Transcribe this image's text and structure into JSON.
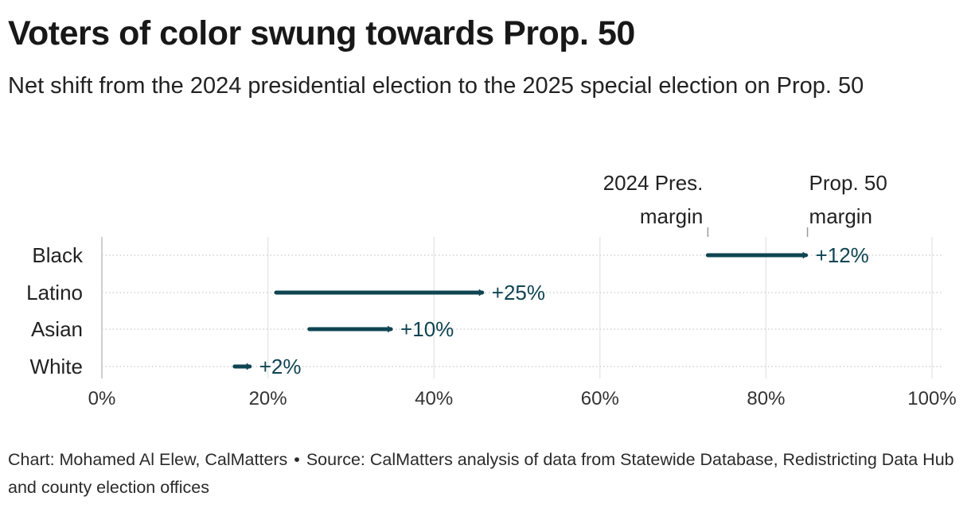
{
  "title": "Voters of color swung towards Prop. 50",
  "subtitle": "Net shift from the 2024 presidential election to the 2025 special election on Prop. 50",
  "footer": {
    "credit": "Chart: Mohamed Al Elew, CalMatters",
    "separator": "•",
    "source": "Source: CalMatters analysis of data from Statewide Database, Redistricting Data Hub and county election offices"
  },
  "chart_data": {
    "type": "arrow",
    "xlim": [
      0,
      100
    ],
    "x_ticks": [
      0,
      20,
      40,
      60,
      80,
      100
    ],
    "x_tick_labels": [
      "0%",
      "20%",
      "40%",
      "60%",
      "80%",
      "100%"
    ],
    "grid": true,
    "start_label": [
      "2024 Pres.",
      "margin"
    ],
    "end_label": [
      "Prop. 50",
      "margin"
    ],
    "annotation_row": "Black",
    "arrow_color": "#0f4452",
    "rows": [
      {
        "category": "Black",
        "start": 73,
        "end": 85,
        "label": "+12%"
      },
      {
        "category": "Latino",
        "start": 21,
        "end": 46,
        "label": "+25%"
      },
      {
        "category": "Asian",
        "start": 25,
        "end": 35,
        "label": "+10%"
      },
      {
        "category": "White",
        "start": 16,
        "end": 18,
        "label": "+2%"
      }
    ]
  }
}
